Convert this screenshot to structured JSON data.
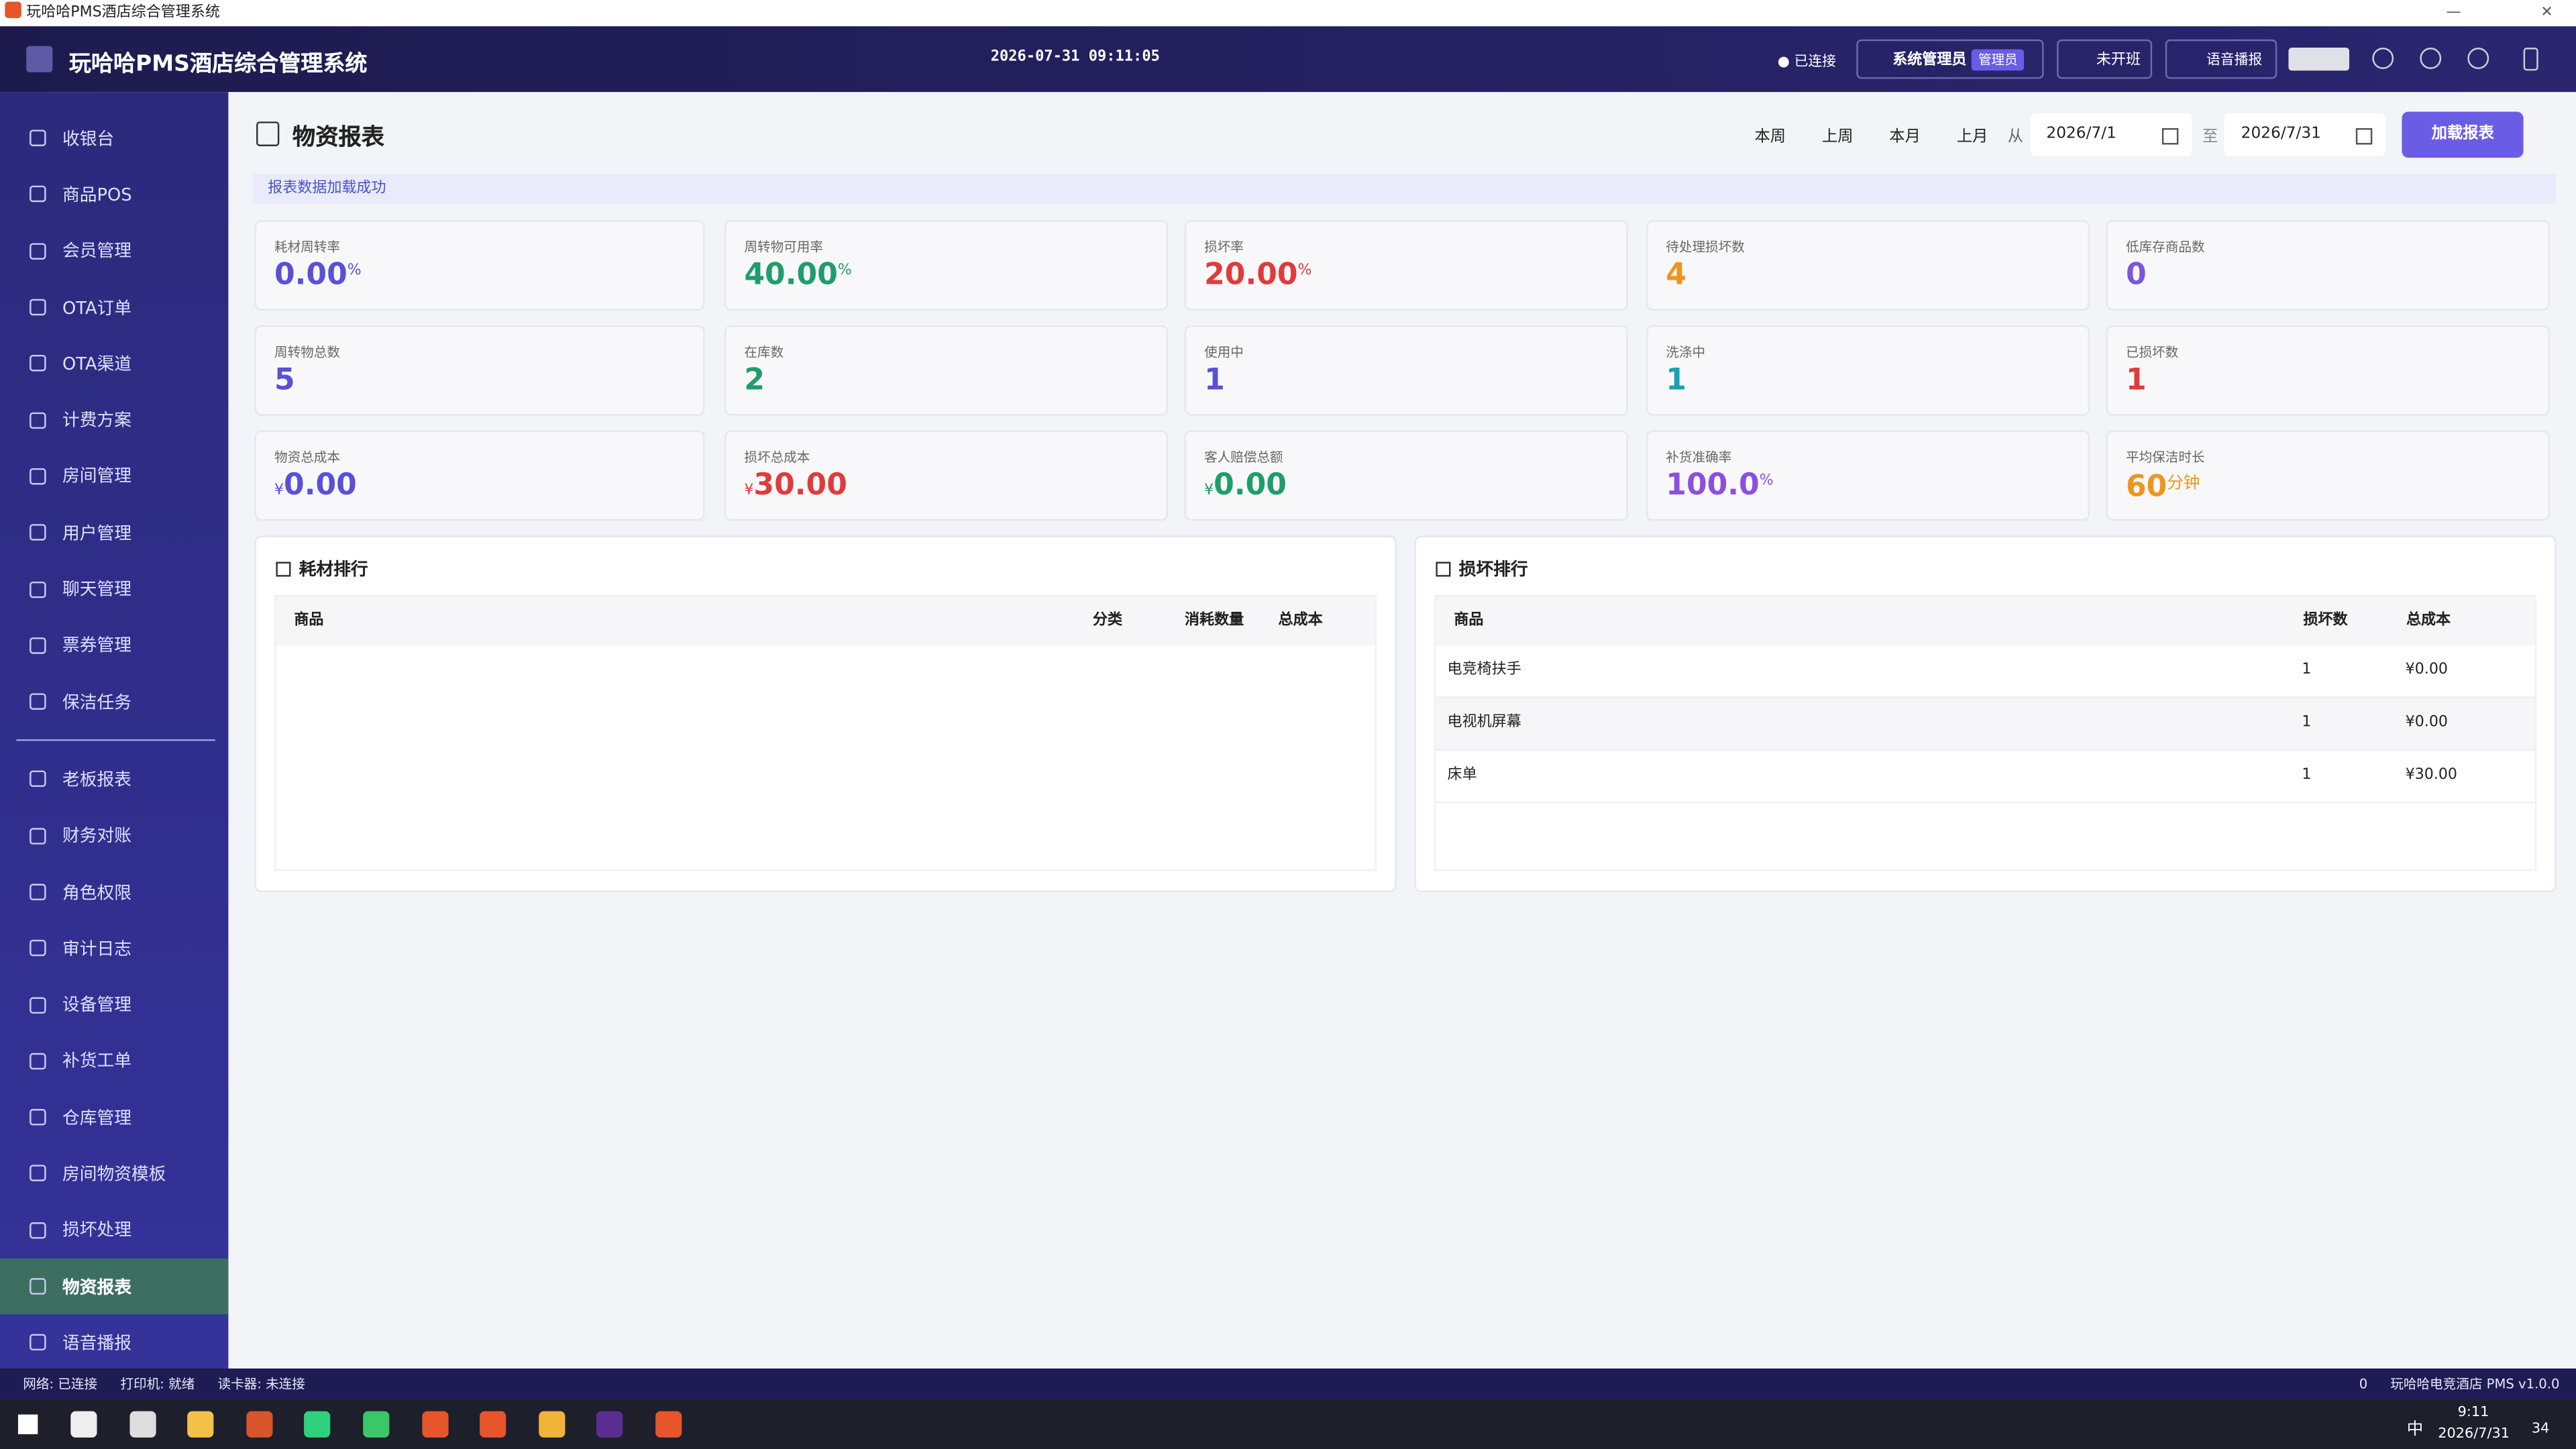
{
  "window": {
    "title": "玩哈哈PMS酒店综合管理系统"
  },
  "header": {
    "app_name": "玩哈哈PMS酒店综合管理系统",
    "datetime": "2026-07-31 09:11:05",
    "connection": "已连接",
    "user": "系统管理员",
    "role": "管理员",
    "shift": "未开班",
    "voice": "语音播报"
  },
  "sidebar": {
    "groups": [
      [
        {
          "label": "收银台"
        },
        {
          "label": "商品POS"
        },
        {
          "label": "会员管理"
        },
        {
          "label": "OTA订单"
        },
        {
          "label": "OTA渠道"
        },
        {
          "label": "计费方案"
        },
        {
          "label": "房间管理"
        },
        {
          "label": "用户管理"
        },
        {
          "label": "聊天管理"
        },
        {
          "label": "票券管理"
        },
        {
          "label": "保洁任务"
        }
      ],
      [
        {
          "label": "老板报表"
        },
        {
          "label": "财务对账"
        },
        {
          "label": "角色权限"
        },
        {
          "label": "审计日志"
        },
        {
          "label": "设备管理"
        },
        {
          "label": "补货工单"
        },
        {
          "label": "仓库管理"
        },
        {
          "label": "房间物资模板"
        },
        {
          "label": "损坏处理"
        },
        {
          "label": "物资报表",
          "active": true
        },
        {
          "label": "语音播报"
        }
      ]
    ]
  },
  "page": {
    "title": "物资报表",
    "filters": {
      "quick": [
        "本周",
        "上周",
        "本月",
        "上月"
      ],
      "from_label": "从",
      "from": "2026/7/1",
      "to_label": "至",
      "to": "2026/7/31",
      "load": "加载报表"
    },
    "notice": "报表数据加载成功",
    "kpis": [
      {
        "label": "耗材周转率",
        "value": "0.00",
        "suffix": "%",
        "color": "#5a4fd8"
      },
      {
        "label": "周转物可用率",
        "value": "40.00",
        "suffix": "%",
        "color": "#1f9d6b"
      },
      {
        "label": "损坏率",
        "value": "20.00",
        "suffix": "%",
        "color": "#e03b3b"
      },
      {
        "label": "待处理损坏数",
        "value": "4",
        "color": "#f0941c"
      },
      {
        "label": "低库存商品数",
        "value": "0",
        "color": "#7b55e0"
      },
      {
        "label": "周转物总数",
        "value": "5",
        "color": "#5a4fd8"
      },
      {
        "label": "在库数",
        "value": "2",
        "color": "#1f9d6b"
      },
      {
        "label": "使用中",
        "value": "1",
        "color": "#5a4fd8"
      },
      {
        "label": "洗涤中",
        "value": "1",
        "color": "#17a2b0"
      },
      {
        "label": "已损坏数",
        "value": "1",
        "color": "#e03b3b"
      },
      {
        "label": "物资总成本",
        "prefix": "¥",
        "value": "0.00",
        "color": "#5a4fd8"
      },
      {
        "label": "损坏总成本",
        "prefix": "¥",
        "value": "30.00",
        "color": "#e03b3b"
      },
      {
        "label": "客人赔偿总额",
        "prefix": "¥",
        "value": "0.00",
        "color": "#1f9d6b"
      },
      {
        "label": "补货准确率",
        "value": "100.0",
        "suffix": "%",
        "color": "#8a4fe0"
      },
      {
        "label": "平均保洁时长",
        "value": "60",
        "suffix": "分钟",
        "color": "#f0941c"
      }
    ],
    "tables": [
      {
        "title": "耗材排行",
        "columns": [
          "商品",
          "分类",
          "消耗数量",
          "总成本"
        ],
        "rows": []
      },
      {
        "title": "损坏排行",
        "columns": [
          "商品",
          "损坏数",
          "总成本"
        ],
        "rows": [
          [
            "电竞椅扶手",
            "1",
            "¥0.00"
          ],
          [
            "电视机屏幕",
            "1",
            "¥0.00"
          ],
          [
            "床单",
            "1",
            "¥30.00"
          ]
        ]
      }
    ]
  },
  "status_bar": {
    "items": [
      "网络: 已连接",
      "打印机: 就绪",
      "读卡器: 未连接"
    ],
    "alerts": "0",
    "version": "玩哈哈电竞酒店 PMS v1.0.0"
  },
  "taskbar": {
    "ime": "中",
    "time": "9:11",
    "date": "2026/7/31",
    "notifications": "34"
  }
}
